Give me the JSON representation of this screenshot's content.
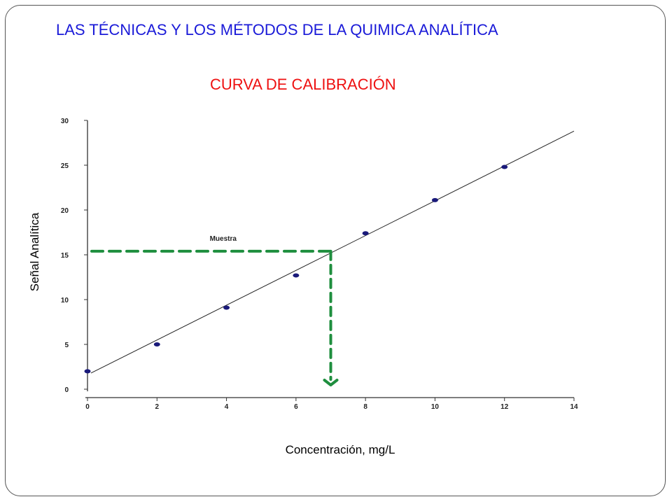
{
  "slide": {
    "title": "LAS TÉCNICAS Y LOS MÉTODOS DE LA QUIMICA ANALÍTICA"
  },
  "chart_data": {
    "type": "scatter",
    "title": "CURVA DE CALIBRACIÓN",
    "xlabel": "Concentración, mg/L",
    "ylabel": "Señal Analítica",
    "xlim": [
      0,
      14
    ],
    "ylim": [
      0,
      30
    ],
    "x_ticks": [
      0,
      2,
      4,
      6,
      8,
      10,
      12,
      14
    ],
    "y_ticks": [
      0,
      5,
      10,
      15,
      20,
      25,
      30
    ],
    "grid": false,
    "points": [
      {
        "x": 0,
        "y": 2.0
      },
      {
        "x": 2,
        "y": 5.0
      },
      {
        "x": 4,
        "y": 9.1
      },
      {
        "x": 6,
        "y": 12.7
      },
      {
        "x": 8,
        "y": 17.4
      },
      {
        "x": 10,
        "y": 21.1
      },
      {
        "x": 12,
        "y": 24.8
      }
    ],
    "fit_line": {
      "x": [
        0.1,
        14
      ],
      "y": [
        1.8,
        28.8
      ]
    },
    "sample": {
      "label": "Muestra",
      "x": 7.0,
      "y": 15.4,
      "color": "#1e8e3e"
    },
    "point_color": "#1a1a7a",
    "line_color": "#222222"
  }
}
